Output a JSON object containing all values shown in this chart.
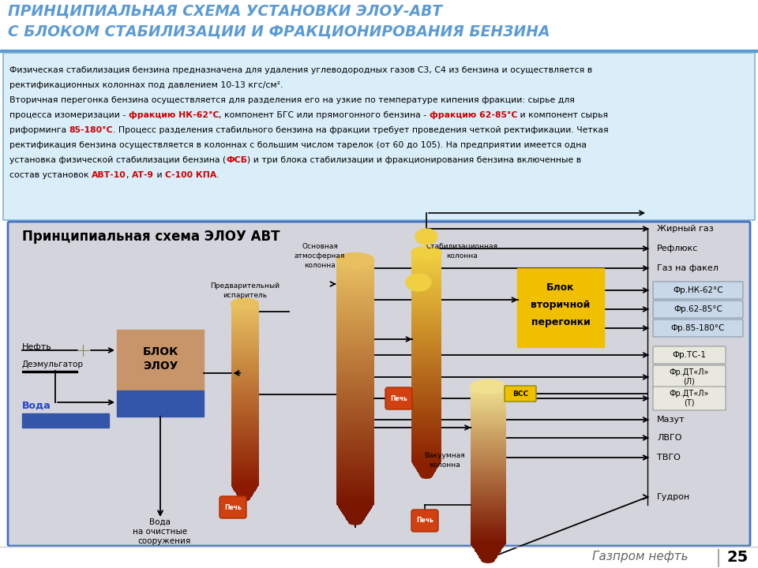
{
  "title_line1": "ПРИНЦИПИАЛЬНАЯ СХЕМА УСТАНОВКИ ЭЛОУ-АВТ",
  "title_line2": "С БЛОКОМ СТАБИЛИЗАЦИИ И ФРАКЦИОНИРОВАНИЯ БЕНЗИНА",
  "scheme_title": "Принципиальная схема ЭЛОУ АВТ",
  "desc_line1": "Физическая стабилизация бензина предназначена для удаления углеводородных газов С3, С4 из бензина и осуществляется в",
  "desc_line2": "ректификационных колоннах под давлением 10-13 кгс/см².",
  "desc_line3": "Вторичная перегонка бензина осуществляется для разделения его на узкие по температуре кипения фракции: сырье для",
  "desc_line4a": "процесса изомеризации - ",
  "desc_line4b": "фракцию НК-62°С",
  "desc_line4c": ", компонент БГС или прямогонного бензина - ",
  "desc_line4d": "фракцию 62-85°С",
  "desc_line4e": " и компонент сырья",
  "desc_line5a": "риформинга ",
  "desc_line5b": "85-180°С",
  "desc_line5c": ". Процесс разделения стабильного бензина на фракции требует проведения четкой ректификации. Четкая",
  "desc_line6": "ректификация бензина осуществляется в колоннах с большим числом тарелок (от 60 до 105). На предприятии имеется одна",
  "desc_line7a": "установка физической стабилизации бензина (",
  "desc_line7b": "ФСБ",
  "desc_line7c": ") и три блока стабилизации и фракционирования бензина включенные в",
  "desc_line8a": "состав установок ",
  "desc_line8b": "АВТ-10",
  "desc_line8c": ", ",
  "desc_line8d": "АТ-9",
  "desc_line8e": " и ",
  "desc_line8f": "С-100 КПА",
  "desc_line8g": ".",
  "output_labels": [
    "Жирный газ",
    "Рефлюкс",
    "Газ на факел",
    "Фр.НК-62°С",
    "Фр.62-85°С",
    "Фр.85-180°С",
    "Фр.ТС-1",
    "Фр.ДТ«Л»\n(Л)",
    "Фр.ДТ«Л»\n(Т)",
    "Мазут",
    "ЛВГО",
    "ТВГО",
    "Гудрон"
  ],
  "gazprom_text": "Газпром нефть",
  "page_num": "25",
  "title_color": "#5b9bd5",
  "desc_box_color": "#daeef9",
  "scheme_bg": "#d8d8e0",
  "elou_tan": "#c8956a",
  "elou_blue": "#3355aa",
  "furnace_color": "#d04010",
  "bvp_color": "#f0c000",
  "vss_color": "#f0c000",
  "red_text": "#cc0000"
}
